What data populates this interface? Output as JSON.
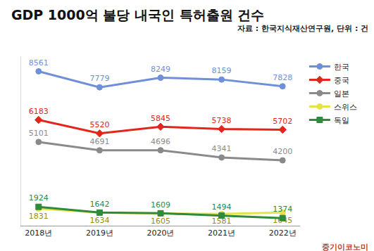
{
  "chart_data": {
    "type": "line",
    "title": "GDP 1000억 불당 내국인 특허출원 건수",
    "subtitle": "자료 : 한국지식재산연구원, 단위 : 건",
    "annotations": [
      "중기이코노미"
    ],
    "categories": [
      "2018년",
      "2019년",
      "2020년",
      "2021년",
      "2022년"
    ],
    "series": [
      {
        "name": "한국",
        "color": "#6f8fd8",
        "marker": "circle",
        "values": [
          8561,
          7779,
          8249,
          8159,
          7828
        ]
      },
      {
        "name": "중국",
        "color": "#e3261b",
        "marker": "diamond",
        "values": [
          6183,
          5520,
          5845,
          5738,
          5702
        ]
      },
      {
        "name": "일본",
        "color": "#8a8a8a",
        "marker": "circle",
        "values": [
          5101,
          4691,
          4696,
          4341,
          4200
        ]
      },
      {
        "name": "스위스",
        "color": "#e8e24a",
        "marker": "circle",
        "values": [
          1831,
          1634,
          1605,
          1581,
          1645
        ]
      },
      {
        "name": "독일",
        "color": "#2f8a3c",
        "marker": "square",
        "values": [
          1924,
          1642,
          1609,
          1494,
          1374
        ]
      }
    ],
    "ylim": [
      1000,
      9300
    ],
    "yticks": [],
    "grid": false,
    "legend": "top-right",
    "data_labels": true,
    "tick_labels": "x"
  }
}
